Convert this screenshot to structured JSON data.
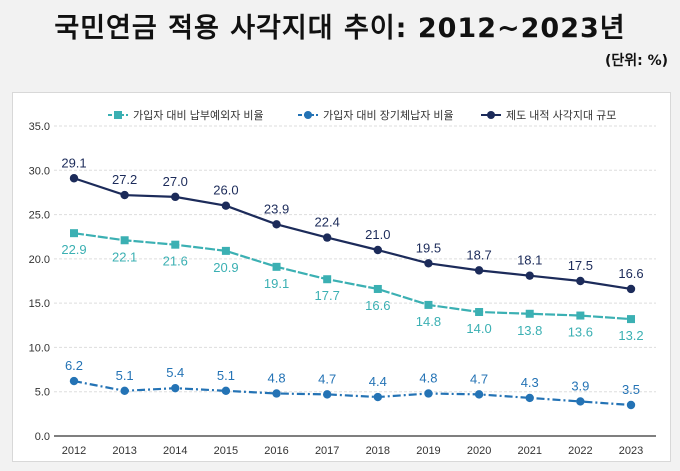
{
  "title": "국민연금 적용 사각지대 추이: 2012~2023년",
  "unit": "(단위: %)",
  "colors": {
    "s1": "#3bb0b3",
    "s2": "#2473b5",
    "s3": "#1c2b5a"
  },
  "chart_data": {
    "type": "line",
    "x": [
      "2012",
      "2013",
      "2014",
      "2015",
      "2016",
      "2017",
      "2018",
      "2019",
      "2020",
      "2021",
      "2022",
      "2023"
    ],
    "ylim": [
      0,
      35
    ],
    "yticks": [
      "0.0",
      "5.0",
      "10.0",
      "15.0",
      "20.0",
      "25.0",
      "30.0",
      "35.0"
    ],
    "grid": true,
    "legend_position": "top",
    "series": [
      {
        "name": "가입자 대비 납부예외자 비율",
        "marker": "square",
        "values": [
          22.9,
          22.1,
          21.6,
          20.9,
          19.1,
          17.7,
          16.6,
          14.8,
          14.0,
          13.8,
          13.6,
          13.2
        ]
      },
      {
        "name": "가입자 대비 장기체납자 비율",
        "marker": "circle",
        "values": [
          6.2,
          5.1,
          5.4,
          5.1,
          4.8,
          4.7,
          4.4,
          4.8,
          4.7,
          4.3,
          3.9,
          3.5
        ]
      },
      {
        "name": "제도 내적 사각지대 규모",
        "marker": "circle",
        "values": [
          29.1,
          27.2,
          27.0,
          26.0,
          23.9,
          22.4,
          21.0,
          19.5,
          18.7,
          18.1,
          17.5,
          16.6
        ]
      }
    ]
  }
}
